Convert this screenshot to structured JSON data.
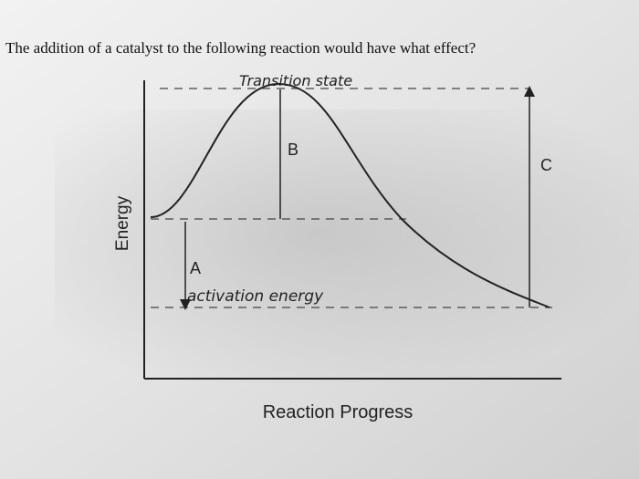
{
  "question": "The addition of a catalyst to the following reaction would have what effect?",
  "diagram": {
    "y_axis_label": "Energy",
    "x_axis_label": "Reaction Progress",
    "transition_state": "Transition state",
    "activation_energy": "activation energy",
    "label_a": "A",
    "label_b": "B",
    "label_c": "C"
  }
}
